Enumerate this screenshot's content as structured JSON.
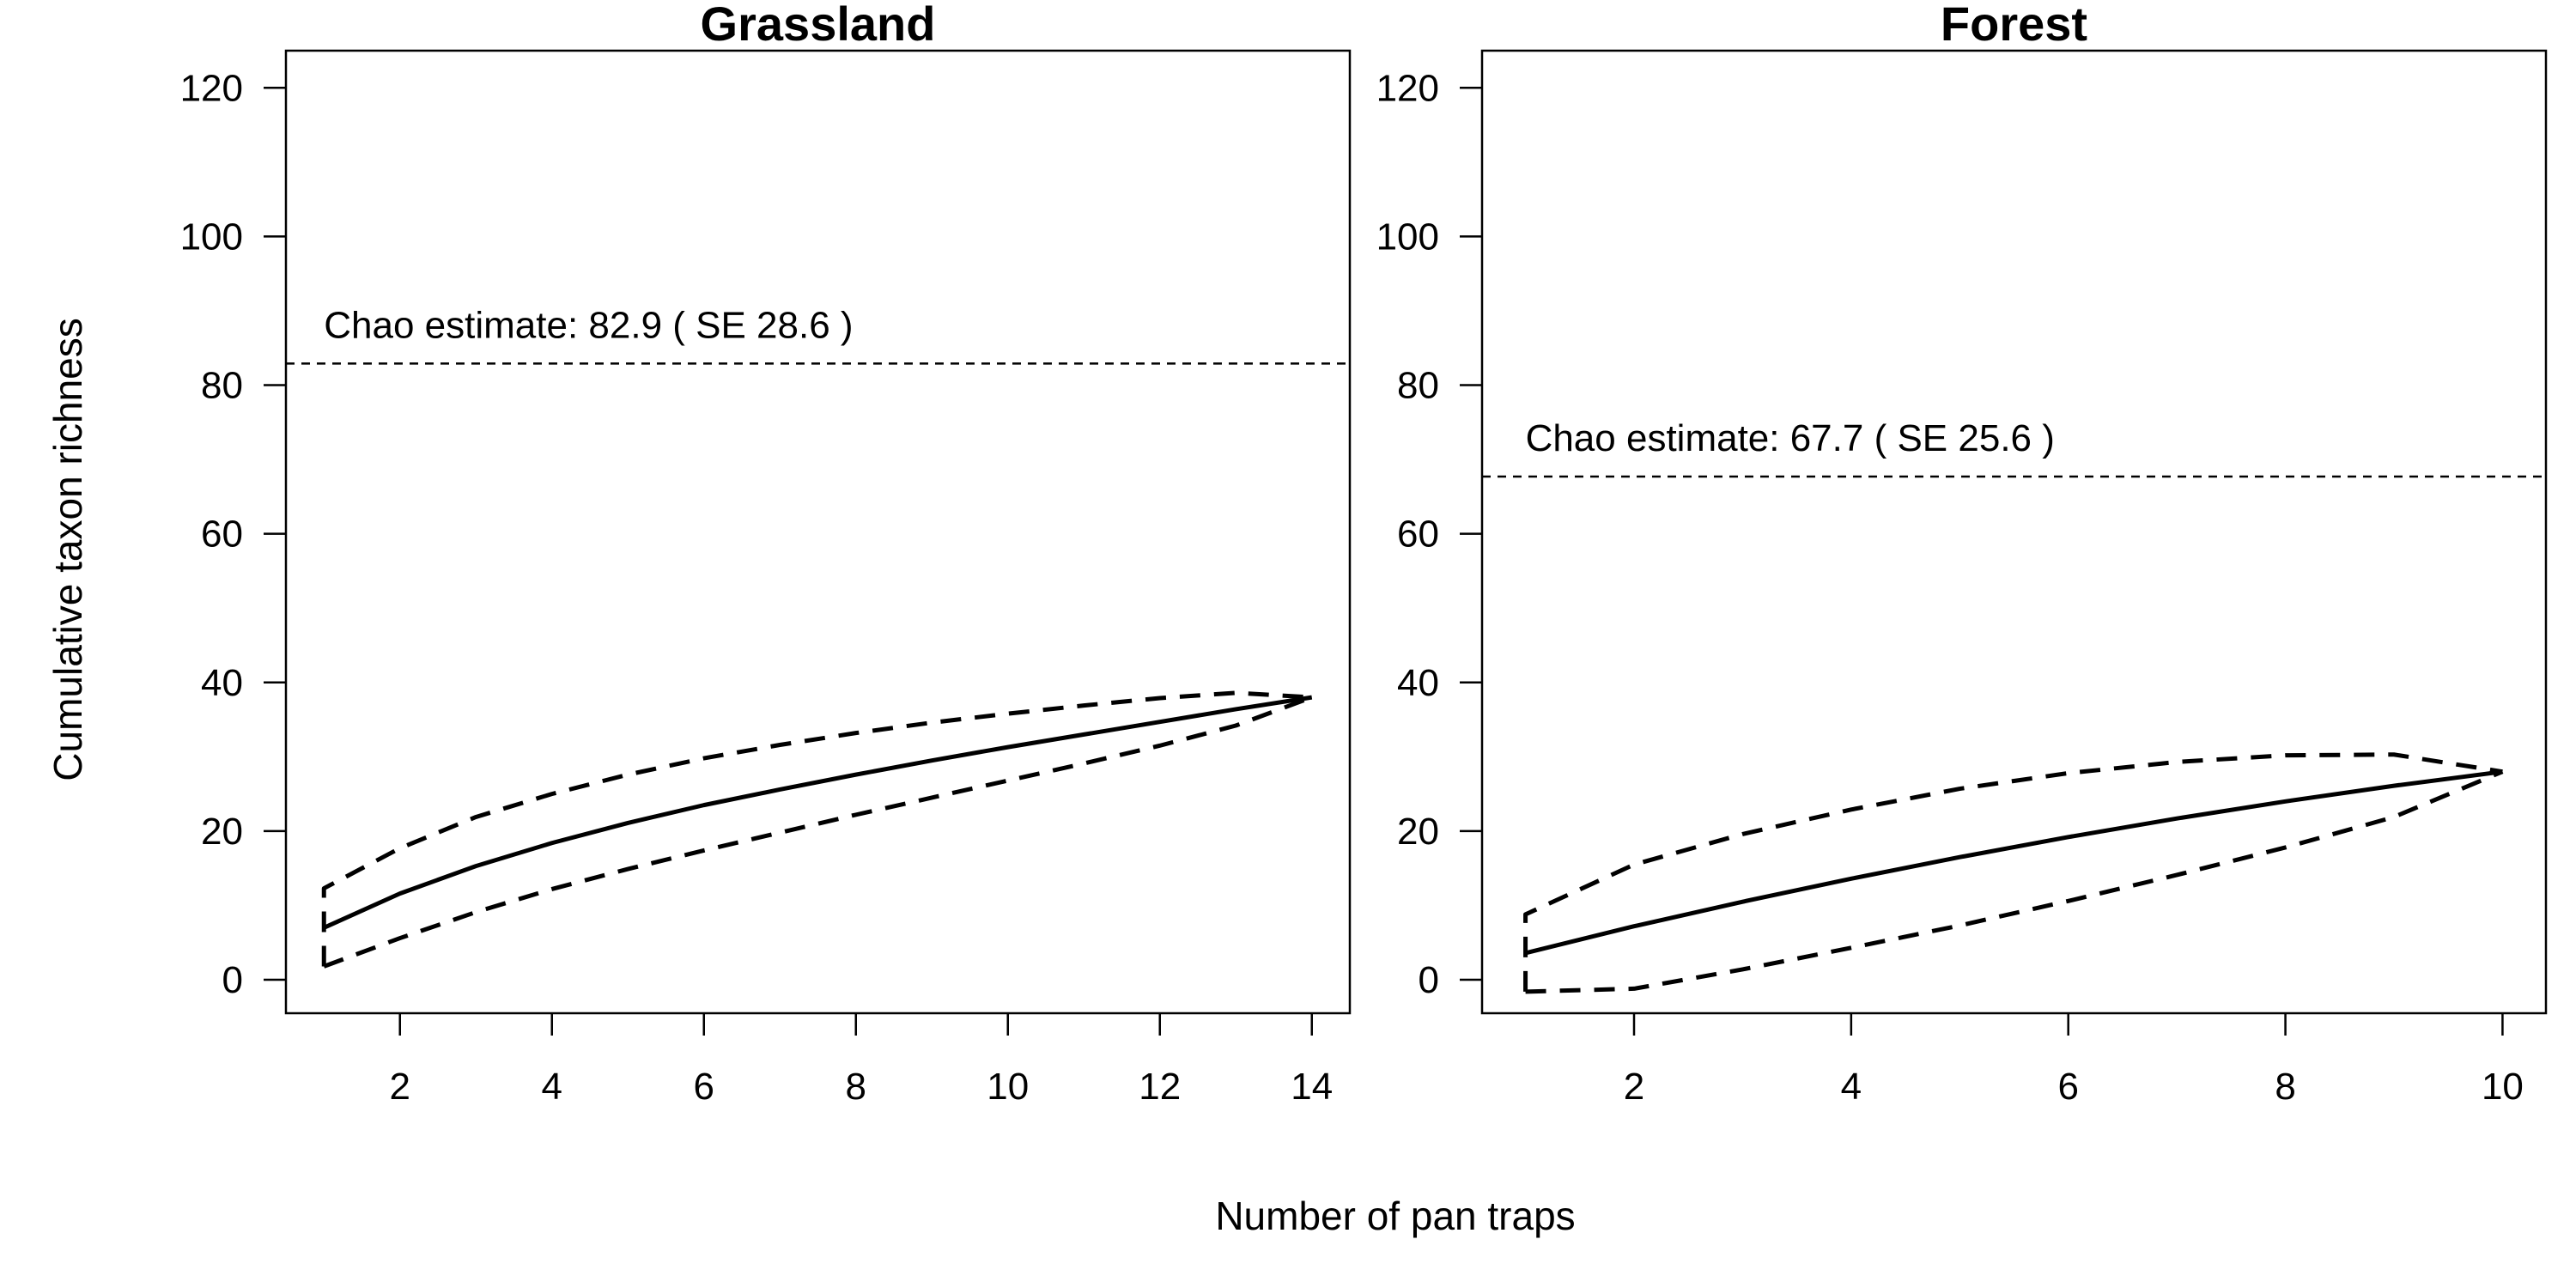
{
  "chart_data": {
    "type": "line",
    "xlabel": "Number of pan traps",
    "ylabel": "Cumulative taxon richness",
    "grid": false,
    "legend": "none",
    "panels": [
      {
        "title": "Grassland",
        "xlim": [
          0.5,
          14.5
        ],
        "ylim": [
          -4.5,
          125
        ],
        "xticks": [
          2,
          4,
          6,
          8,
          10,
          12,
          14
        ],
        "yticks": [
          0,
          20,
          40,
          60,
          80,
          100,
          120
        ],
        "chao_value": 82.9,
        "chao_label": "Chao estimate: 82.9 ( SE 28.6 )",
        "x": [
          1,
          2,
          3,
          4,
          5,
          6,
          7,
          8,
          9,
          10,
          11,
          12,
          13,
          14
        ],
        "mean": [
          7,
          11.6,
          15.3,
          18.4,
          21.1,
          23.5,
          25.6,
          27.6,
          29.5,
          31.3,
          33.0,
          34.7,
          36.4,
          38
        ],
        "upper": [
          12.3,
          17.7,
          21.9,
          25.0,
          27.6,
          29.8,
          31.6,
          33.2,
          34.6,
          35.8,
          36.9,
          37.9,
          38.6,
          38
        ],
        "lower": [
          1.8,
          5.6,
          9.1,
          12.2,
          14.9,
          17.4,
          19.8,
          22.2,
          24.5,
          26.8,
          29.1,
          31.5,
          34.2,
          38
        ]
      },
      {
        "title": "Forest",
        "xlim": [
          0.6,
          10.4
        ],
        "ylim": [
          -4.5,
          125
        ],
        "xticks": [
          2,
          4,
          6,
          8,
          10
        ],
        "yticks": [
          0,
          20,
          40,
          60,
          80,
          100,
          120
        ],
        "chao_value": 67.7,
        "chao_label": "Chao estimate: 67.7 ( SE 25.6 )",
        "x": [
          1,
          2,
          3,
          4,
          5,
          6,
          7,
          8,
          9,
          10
        ],
        "mean": [
          3.6,
          7.2,
          10.5,
          13.6,
          16.5,
          19.2,
          21.7,
          24.0,
          26.1,
          28
        ],
        "upper": [
          8.8,
          15.5,
          19.6,
          22.9,
          25.7,
          27.8,
          29.3,
          30.2,
          30.3,
          28
        ],
        "lower": [
          -1.6,
          -1.2,
          1.4,
          4.3,
          7.3,
          10.6,
          14.1,
          17.8,
          21.9,
          28
        ]
      }
    ]
  }
}
